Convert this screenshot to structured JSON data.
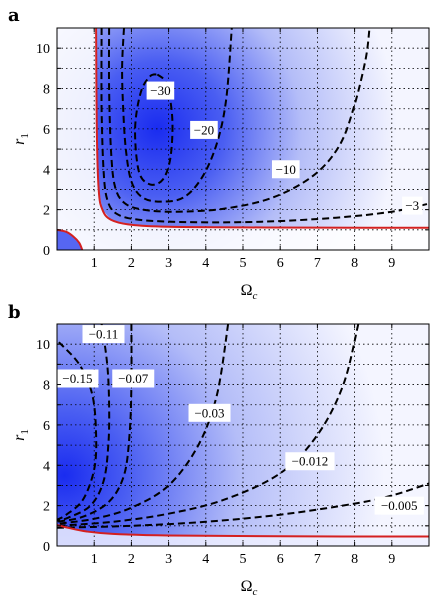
{
  "chart_data": [
    {
      "panel": "a",
      "type": "heatmap",
      "xlabel": "Ω",
      "xlabel_sub": "c",
      "ylabel": "r",
      "ylabel_sub": "1",
      "xlim": [
        0,
        10
      ],
      "ylim": [
        0,
        11
      ],
      "xticks": [
        "1",
        "2",
        "3",
        "4",
        "5",
        "6",
        "7",
        "8",
        "9"
      ],
      "yticks": [
        "0",
        "2",
        "4",
        "6",
        "8",
        "10"
      ],
      "grid": true,
      "colormap": {
        "high": "#1a2cf0",
        "low": "#f4f5ff"
      },
      "boundary_color": "#d42020",
      "contours": [
        {
          "label": "−30",
          "points": [
            [
              2.7,
              8.7
            ],
            [
              2.95,
              8.2
            ],
            [
              3.1,
              6.5
            ],
            [
              3.05,
              4.6
            ],
            [
              2.85,
              3.5
            ],
            [
              2.5,
              3.25
            ],
            [
              2.2,
              3.9
            ],
            [
              2.1,
              6.0
            ],
            [
              2.25,
              7.8
            ],
            [
              2.5,
              8.6
            ],
            [
              2.7,
              8.7
            ]
          ]
        },
        {
          "label": "−20",
          "points": [
            [
              1.8,
              11
            ],
            [
              1.75,
              9
            ],
            [
              1.78,
              7
            ],
            [
              1.85,
              5
            ],
            [
              2.0,
              3.4
            ],
            [
              2.3,
              2.6
            ],
            [
              2.8,
              2.4
            ],
            [
              3.4,
              2.6
            ],
            [
              3.9,
              3.6
            ],
            [
              4.3,
              5.3
            ],
            [
              4.55,
              7.5
            ],
            [
              4.7,
              11
            ]
          ]
        },
        {
          "label": "−10",
          "points": [
            [
              1.4,
              11
            ],
            [
              1.4,
              8
            ],
            [
              1.45,
              5
            ],
            [
              1.55,
              3.2
            ],
            [
              1.8,
              2.35
            ],
            [
              2.3,
              2.0
            ],
            [
              3.2,
              1.9
            ],
            [
              4.5,
              2.05
            ],
            [
              5.8,
              2.6
            ],
            [
              6.9,
              3.7
            ],
            [
              7.6,
              5.2
            ],
            [
              8.0,
              7.2
            ],
            [
              8.3,
              9.5
            ],
            [
              8.4,
              11
            ]
          ]
        },
        {
          "label": "−3",
          "points": [
            [
              1.2,
              11
            ],
            [
              1.2,
              7
            ],
            [
              1.25,
              4
            ],
            [
              1.35,
              2.5
            ],
            [
              1.6,
              1.8
            ],
            [
              2.2,
              1.5
            ],
            [
              3.5,
              1.38
            ],
            [
              5.5,
              1.4
            ],
            [
              7.5,
              1.6
            ],
            [
              9,
              1.9
            ],
            [
              10,
              2.3
            ]
          ]
        }
      ],
      "boundaries": [
        {
          "points": [
            [
              1.05,
              11
            ],
            [
              1.07,
              6
            ],
            [
              1.12,
              3
            ],
            [
              1.22,
              2.0
            ],
            [
              1.45,
              1.5
            ],
            [
              2.0,
              1.25
            ],
            [
              3,
              1.15
            ],
            [
              5,
              1.12
            ],
            [
              7,
              1.11
            ],
            [
              10,
              1.1
            ]
          ]
        },
        {
          "points": [
            [
              0,
              1.0
            ],
            [
              0.25,
              0.9
            ],
            [
              0.45,
              0.65
            ],
            [
              0.6,
              0.35
            ],
            [
              0.68,
              0
            ]
          ]
        }
      ],
      "annotations": [
        {
          "text": "−30",
          "x": 2.78,
          "y": 7.9
        },
        {
          "text": "−20",
          "x": 3.95,
          "y": 5.95
        },
        {
          "text": "−10",
          "x": 6.15,
          "y": 4.0
        },
        {
          "text": "−3",
          "x": 9.55,
          "y": 2.2
        }
      ]
    },
    {
      "panel": "b",
      "type": "heatmap",
      "xlabel": "Ω",
      "xlabel_sub": "c",
      "ylabel": "r",
      "ylabel_sub": "1",
      "xlim": [
        0,
        10
      ],
      "ylim": [
        0,
        11
      ],
      "xticks": [
        "1",
        "2",
        "3",
        "4",
        "5",
        "6",
        "7",
        "8",
        "9"
      ],
      "yticks": [
        "0",
        "2",
        "4",
        "6",
        "8",
        "10"
      ],
      "grid": true,
      "colormap": {
        "high": "#1a2cf0",
        "low": "#f4f5ff"
      },
      "boundary_color": "#d42020",
      "contours": [
        {
          "label": "−0.15",
          "points": [
            [
              0.05,
              10.1
            ],
            [
              0.6,
              9.0
            ],
            [
              0.95,
              7.5
            ],
            [
              1.05,
              5.5
            ],
            [
              1.0,
              3.8
            ],
            [
              0.7,
              2.3
            ],
            [
              0.25,
              1.55
            ],
            [
              0,
              1.3
            ]
          ]
        },
        {
          "label": "−0.11",
          "points": [
            [
              1.2,
              11
            ],
            [
              1.35,
              9
            ],
            [
              1.4,
              7
            ],
            [
              1.38,
              5
            ],
            [
              1.25,
              3.2
            ],
            [
              0.9,
              2.0
            ],
            [
              0.3,
              1.4
            ],
            [
              0,
              1.25
            ]
          ]
        },
        {
          "label": "−0.07",
          "points": [
            [
              2.0,
              11
            ],
            [
              2.0,
              8
            ],
            [
              1.95,
              5.5
            ],
            [
              1.8,
              3.5
            ],
            [
              1.4,
              2.2
            ],
            [
              0.7,
              1.45
            ],
            [
              0,
              1.2
            ]
          ]
        },
        {
          "label": "−0.03",
          "points": [
            [
              4.6,
              11
            ],
            [
              4.3,
              7.5
            ],
            [
              3.8,
              5.0
            ],
            [
              3.0,
              3.0
            ],
            [
              2.0,
              1.9
            ],
            [
              1.0,
              1.35
            ],
            [
              0,
              1.1
            ]
          ]
        },
        {
          "label": "−0.012",
          "points": [
            [
              8.1,
              11
            ],
            [
              7.7,
              8
            ],
            [
              7.0,
              5.5
            ],
            [
              6.0,
              3.6
            ],
            [
              4.5,
              2.3
            ],
            [
              3.0,
              1.6
            ],
            [
              1.5,
              1.2
            ],
            [
              0,
              1.0
            ]
          ]
        },
        {
          "label": "−0.005",
          "points": [
            [
              0,
              0.9
            ],
            [
              2,
              1.0
            ],
            [
              4,
              1.2
            ],
            [
              6,
              1.55
            ],
            [
              8,
              2.1
            ],
            [
              9,
              2.5
            ],
            [
              10,
              3.1
            ]
          ]
        }
      ],
      "boundaries": [
        {
          "points": [
            [
              0,
              1.05
            ],
            [
              0.3,
              0.9
            ],
            [
              0.8,
              0.72
            ],
            [
              1.5,
              0.6
            ],
            [
              3,
              0.52
            ],
            [
              6,
              0.48
            ],
            [
              10,
              0.47
            ]
          ]
        }
      ],
      "annotations": [
        {
          "text": "−0.11",
          "x": 1.25,
          "y": 10.5
        },
        {
          "text": "−0.15",
          "x": 0.55,
          "y": 8.3
        },
        {
          "text": "−0.07",
          "x": 2.05,
          "y": 8.3
        },
        {
          "text": "−0.03",
          "x": 4.1,
          "y": 6.6
        },
        {
          "text": "−0.012",
          "x": 6.8,
          "y": 4.2
        },
        {
          "text": "−0.005",
          "x": 9.2,
          "y": 2.0
        }
      ]
    }
  ]
}
